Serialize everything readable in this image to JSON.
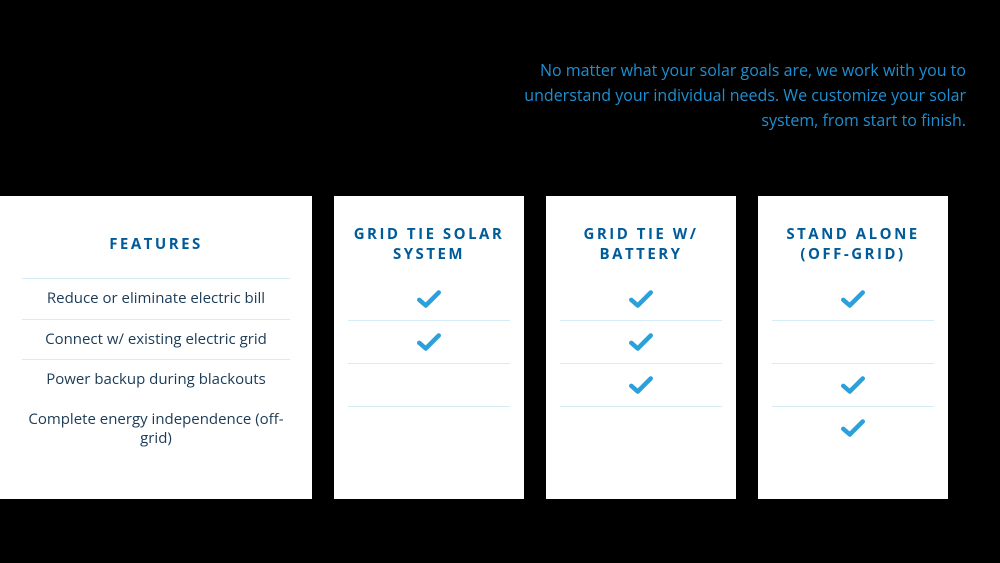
{
  "colors": {
    "background": "#000000",
    "card_bg": "#ffffff",
    "intro_text": "#1e90d2",
    "heading": "#005b9a",
    "feature_text": "#1a3a56",
    "divider": "#d6ecf7",
    "check": "#2ca0db"
  },
  "intro_text": "No matter what your solar goals are, we work with you to understand your individual needs.  We customize your solar system, from start to finish.",
  "features": {
    "title": "FEATURES",
    "rows": [
      "Reduce or eliminate electric bill",
      "Connect w/ existing electric grid",
      "Power backup during blackouts",
      "Complete energy independence (off-grid)"
    ]
  },
  "systems": [
    {
      "title": "GRID TIE SOLAR SYSTEM",
      "checks": [
        true,
        true,
        false,
        false
      ]
    },
    {
      "title": "GRID TIE W/ BATTERY",
      "checks": [
        true,
        true,
        true,
        false
      ]
    },
    {
      "title": "STAND ALONE (OFF-GRID)",
      "checks": [
        true,
        false,
        true,
        true
      ]
    }
  ]
}
